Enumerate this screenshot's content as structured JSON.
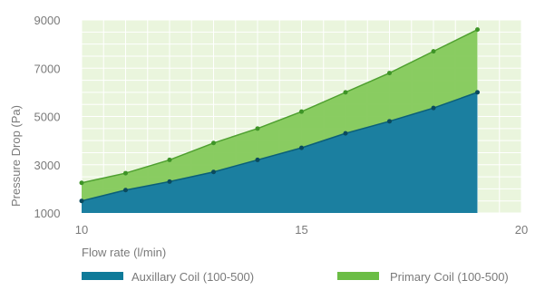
{
  "chart_data": {
    "type": "area",
    "title": "",
    "xlabel": "Flow rate (l/min)",
    "ylabel": "Pressure Drop (Pa)",
    "xlim": [
      10,
      20
    ],
    "ylim": [
      1000,
      9000
    ],
    "x_ticks": [
      "10",
      "15",
      "20"
    ],
    "y_ticks": [
      "1000",
      "3000",
      "5000",
      "7000",
      "9000"
    ],
    "x": [
      10,
      11,
      12,
      13,
      14,
      15,
      16,
      17,
      18,
      19
    ],
    "stacked": false,
    "grid": true,
    "legend_position": "bottom",
    "series": [
      {
        "name": "Auxillary Coil (100-500)",
        "color": "#0e7a99",
        "values": [
          1500,
          1950,
          2300,
          2700,
          3200,
          3700,
          4300,
          4800,
          5350,
          6000
        ]
      },
      {
        "name": "Primary Coil (100-500)",
        "color": "#6bbd45",
        "values": [
          2250,
          2650,
          3200,
          3900,
          4500,
          5200,
          6000,
          6800,
          7700,
          8600
        ]
      }
    ]
  }
}
